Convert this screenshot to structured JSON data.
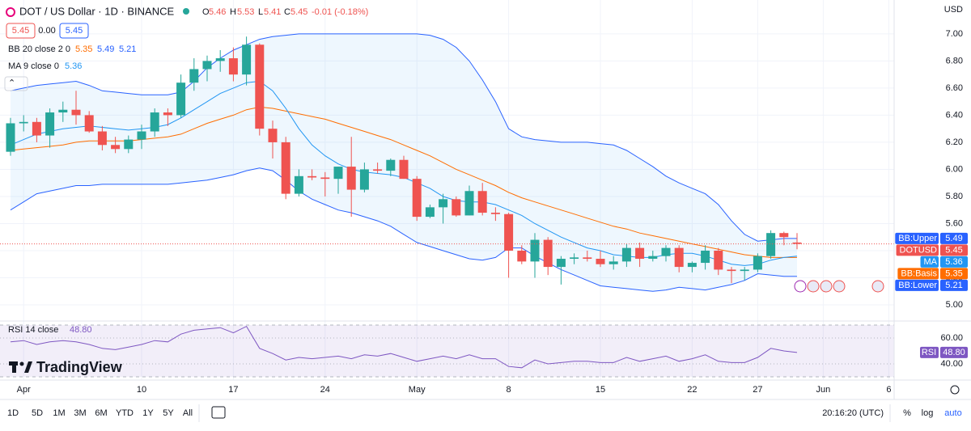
{
  "header": {
    "ohlc_keys": [
      "O",
      "H",
      "L",
      "C"
    ],
    "change": "-0.01 (-0.18%)",
    "bid": 5.45,
    "spread": "0.00",
    "ask": 5.45
  },
  "logo": "TradingView",
  "toolbar": {
    "ranges": [
      "1D",
      "5D",
      "1M",
      "3M",
      "6M",
      "YTD",
      "1Y",
      "5Y",
      "All"
    ],
    "time": "20:16:20 (UTC)",
    "options": [
      "%",
      "log",
      "auto"
    ]
  },
  "chart_data": {
    "type": "candlestick",
    "title": "DOT / US Dollar · 1D · BINANCE",
    "name": "DOTUSD",
    "axis_unit": "USD",
    "categories": [
      null,
      "Apr",
      null,
      null,
      null,
      null,
      null,
      null,
      null,
      null,
      "10",
      null,
      null,
      null,
      null,
      null,
      null,
      "17",
      null,
      null,
      null,
      null,
      null,
      null,
      "24",
      null,
      null,
      null,
      null,
      null,
      null,
      "May",
      null,
      null,
      null,
      null,
      null,
      null,
      "8",
      null,
      null,
      null,
      null,
      null,
      null,
      "15",
      null,
      null,
      null,
      null,
      null,
      null,
      "22",
      null,
      null,
      null,
      null,
      "27",
      null,
      null,
      null,
      null,
      "Jun",
      null,
      null,
      null,
      null,
      "6"
    ],
    "open": [
      6.13,
      6.34,
      6.35,
      6.25,
      6.42,
      6.44,
      6.4,
      6.28,
      6.18,
      6.15,
      6.22,
      6.28,
      6.42,
      6.4,
      6.64,
      6.74,
      6.8,
      6.82,
      6.7,
      6.92,
      6.3,
      6.2,
      5.82,
      5.95,
      5.94,
      5.93,
      6.02,
      5.85,
      6.0,
      5.99,
      6.07,
      5.93,
      5.65,
      5.72,
      5.78,
      5.66,
      5.84,
      5.68,
      5.67,
      5.4,
      5.32,
      5.48,
      5.28,
      5.34,
      5.35,
      5.34,
      5.3,
      5.32,
      5.42,
      5.34,
      5.36,
      5.42,
      5.28,
      5.31,
      5.4,
      5.26,
      5.25,
      5.26,
      5.36,
      5.53,
      5.46,
      null,
      null,
      null,
      null,
      null,
      null,
      null
    ],
    "high": [
      6.38,
      6.4,
      6.38,
      6.45,
      6.5,
      6.58,
      6.43,
      6.32,
      6.24,
      6.25,
      6.33,
      6.45,
      6.45,
      6.7,
      6.82,
      6.84,
      6.88,
      6.9,
      6.98,
      6.93,
      6.36,
      6.24,
      6.0,
      6.0,
      5.98,
      6.02,
      6.24,
      6.05,
      6.05,
      6.08,
      6.1,
      5.95,
      5.74,
      5.82,
      5.8,
      5.88,
      5.9,
      5.72,
      5.68,
      5.44,
      5.53,
      5.5,
      5.36,
      5.38,
      5.4,
      5.4,
      5.36,
      5.45,
      5.46,
      5.4,
      5.44,
      5.44,
      5.32,
      5.44,
      5.42,
      5.28,
      5.28,
      5.38,
      5.55,
      5.54,
      5.53,
      null,
      null,
      null,
      null,
      null,
      null,
      null
    ],
    "low": [
      6.1,
      6.28,
      6.2,
      6.16,
      6.35,
      6.33,
      6.27,
      6.14,
      6.12,
      6.12,
      6.15,
      6.24,
      6.32,
      6.38,
      6.58,
      6.65,
      6.72,
      6.65,
      6.62,
      6.25,
      6.08,
      5.78,
      5.8,
      5.92,
      5.8,
      5.82,
      5.65,
      5.83,
      5.97,
      5.95,
      5.93,
      5.62,
      5.64,
      5.6,
      5.65,
      5.66,
      5.66,
      5.62,
      5.2,
      5.3,
      5.2,
      5.22,
      5.15,
      5.3,
      5.32,
      5.28,
      5.26,
      5.28,
      5.28,
      5.32,
      5.32,
      5.24,
      5.24,
      5.26,
      5.22,
      5.16,
      5.18,
      5.24,
      5.34,
      5.44,
      5.41,
      null,
      null,
      null,
      null,
      null,
      null,
      null
    ],
    "close": [
      6.34,
      6.35,
      6.25,
      6.42,
      6.44,
      6.4,
      6.28,
      6.18,
      6.15,
      6.22,
      6.28,
      6.42,
      6.4,
      6.64,
      6.74,
      6.8,
      6.82,
      6.7,
      6.92,
      6.3,
      6.2,
      5.82,
      5.95,
      5.94,
      5.93,
      6.02,
      5.85,
      6.0,
      5.99,
      6.07,
      5.93,
      5.65,
      5.72,
      5.78,
      5.66,
      5.84,
      5.68,
      5.67,
      5.4,
      5.32,
      5.48,
      5.28,
      5.34,
      5.35,
      5.34,
      5.3,
      5.32,
      5.42,
      5.34,
      5.36,
      5.42,
      5.28,
      5.31,
      5.4,
      5.26,
      5.25,
      5.26,
      5.36,
      5.53,
      5.5,
      5.45,
      null,
      null,
      null,
      null,
      null,
      null,
      null
    ],
    "up_color": "#26a69a",
    "down_color": "#ef5350",
    "ylim": [
      4.9,
      7.25
    ],
    "yticks": [
      {
        "value": 5.0,
        "label": "5.00"
      },
      {
        "value": 5.2,
        "label": "5.20"
      },
      {
        "value": 5.4,
        "label": "5.40"
      },
      {
        "value": 5.6,
        "label": "5.60"
      },
      {
        "value": 5.8,
        "label": "5.80"
      },
      {
        "value": 6.0,
        "label": "6.00"
      },
      {
        "value": 6.2,
        "label": "6.20"
      },
      {
        "value": 6.4,
        "label": "6.40"
      },
      {
        "value": 6.6,
        "label": "6.60"
      },
      {
        "value": 6.8,
        "label": "6.80"
      },
      {
        "value": 7.0,
        "label": "7.00"
      }
    ],
    "grid": true,
    "last_price_line": true,
    "indicators": [
      {
        "legend": "BB 20 close 2 0",
        "fill": "#2196f3",
        "series": [
          {
            "name": "BB:Basis",
            "color": "#ff6d00",
            "values": [
              6.14,
              6.15,
              6.16,
              6.17,
              6.18,
              6.2,
              6.21,
              6.21,
              6.21,
              6.21,
              6.22,
              6.23,
              6.24,
              6.26,
              6.3,
              6.34,
              6.37,
              6.4,
              6.44,
              6.46,
              6.45,
              6.43,
              6.41,
              6.39,
              6.37,
              6.34,
              6.31,
              6.28,
              6.25,
              6.22,
              6.18,
              6.14,
              6.1,
              6.05,
              6.0,
              5.96,
              5.92,
              5.88,
              5.83,
              5.79,
              5.76,
              5.73,
              5.7,
              5.67,
              5.64,
              5.61,
              5.58,
              5.56,
              5.53,
              5.51,
              5.49,
              5.47,
              5.45,
              5.43,
              5.41,
              5.39,
              5.37,
              5.36,
              5.35,
              5.35,
              5.35,
              null,
              null,
              null,
              null,
              null,
              null,
              null
            ]
          },
          {
            "name": "BB:Upper",
            "color": "#2962ff",
            "values": [
              6.58,
              6.6,
              6.62,
              6.63,
              6.64,
              6.65,
              6.62,
              6.58,
              6.57,
              6.56,
              6.55,
              6.55,
              6.55,
              6.57,
              6.65,
              6.75,
              6.82,
              6.88,
              6.92,
              6.96,
              6.98,
              6.99,
              7.0,
              7.0,
              7.0,
              7.0,
              7.0,
              7.0,
              7.0,
              7.0,
              7.0,
              7.0,
              6.99,
              6.96,
              6.9,
              6.8,
              6.66,
              6.5,
              6.3,
              6.24,
              6.22,
              6.21,
              6.2,
              6.2,
              6.2,
              6.19,
              6.18,
              6.14,
              6.08,
              6.02,
              5.95,
              5.9,
              5.86,
              5.82,
              5.74,
              5.62,
              5.52,
              5.47,
              5.48,
              5.49,
              5.49,
              null,
              null,
              null,
              null,
              null,
              null,
              null
            ]
          },
          {
            "name": "BB:Lower",
            "color": "#2962ff",
            "values": [
              5.7,
              5.76,
              5.82,
              5.84,
              5.86,
              5.88,
              5.88,
              5.89,
              5.89,
              5.89,
              5.89,
              5.89,
              5.89,
              5.9,
              5.91,
              5.92,
              5.94,
              5.96,
              5.99,
              6.01,
              5.99,
              5.92,
              5.84,
              5.78,
              5.74,
              5.7,
              5.68,
              5.65,
              5.62,
              5.58,
              5.52,
              5.46,
              5.43,
              5.4,
              5.37,
              5.34,
              5.33,
              5.35,
              5.42,
              5.42,
              5.36,
              5.31,
              5.26,
              5.22,
              5.18,
              5.14,
              5.13,
              5.12,
              5.11,
              5.1,
              5.11,
              5.13,
              5.12,
              5.11,
              5.13,
              5.15,
              5.18,
              5.23,
              5.22,
              5.21,
              5.21,
              null,
              null,
              null,
              null,
              null,
              null,
              null
            ]
          }
        ]
      },
      {
        "legend": "MA 9 close 0",
        "series": [
          {
            "name": "MA",
            "color": "#2196f3",
            "values": [
              6.18,
              6.22,
              6.26,
              6.28,
              6.3,
              6.31,
              6.32,
              6.31,
              6.3,
              6.29,
              6.3,
              6.31,
              6.33,
              6.38,
              6.44,
              6.5,
              6.56,
              6.6,
              6.64,
              6.65,
              6.58,
              6.45,
              6.3,
              6.18,
              6.1,
              6.04,
              6.0,
              5.98,
              5.97,
              5.96,
              5.94,
              5.9,
              5.86,
              5.8,
              5.77,
              5.76,
              5.76,
              5.74,
              5.7,
              5.66,
              5.6,
              5.55,
              5.5,
              5.46,
              5.42,
              5.4,
              5.37,
              5.36,
              5.35,
              5.35,
              5.37,
              5.38,
              5.38,
              5.36,
              5.33,
              5.3,
              5.29,
              5.3,
              5.33,
              5.35,
              5.36,
              null,
              null,
              null,
              null,
              null,
              null,
              null
            ]
          }
        ]
      }
    ],
    "rsi": {
      "legend": "RSI 14 close",
      "name": "RSI",
      "color": "#7e57c2",
      "values": [
        57,
        58,
        55,
        57,
        58,
        57,
        55,
        52,
        51,
        53,
        55,
        58,
        57,
        63,
        66,
        67,
        68,
        64,
        69,
        52,
        48,
        43,
        45,
        44,
        45,
        46,
        44,
        47,
        46,
        48,
        45,
        42,
        44,
        46,
        44,
        47,
        44,
        44,
        38,
        37,
        43,
        40,
        41,
        42,
        42,
        41,
        41,
        45,
        42,
        44,
        46,
        42,
        44,
        47,
        42,
        41,
        41,
        45,
        52,
        50,
        48.8,
        null,
        null,
        null,
        null,
        null,
        null,
        null
      ],
      "value_label": "48.80",
      "ylim": [
        30,
        70
      ],
      "band": [
        30,
        70
      ],
      "yticks": [
        {
          "value": 60,
          "label": "60.00"
        },
        {
          "value": 40,
          "label": "40.00"
        }
      ]
    }
  }
}
